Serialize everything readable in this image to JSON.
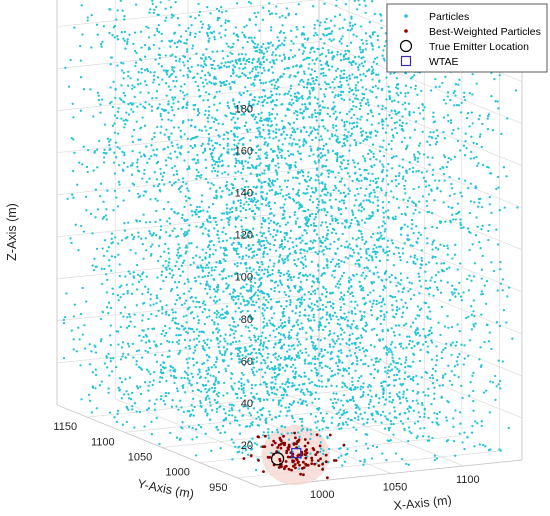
{
  "chart_data": {
    "type": "scatter",
    "projection": "3d",
    "title": "",
    "xlabel": "X-Axis (m)",
    "ylabel": "Y-Axis (m)",
    "zlabel": "Z-Axis (m)",
    "xlim": [
      960,
      1140
    ],
    "ylim": [
      920,
      1190
    ],
    "zlim": [
      0,
      195
    ],
    "x_ticks": [
      "1000",
      "1050",
      "1100"
    ],
    "y_ticks": [
      "950",
      "1000",
      "1050",
      "1100",
      "1150"
    ],
    "z_ticks": [
      "20",
      "40",
      "60",
      "80",
      "100",
      "120",
      "140",
      "160",
      "180"
    ],
    "grid": true,
    "legend_position": "top-right",
    "series": [
      {
        "name": "Particles",
        "marker": "dot",
        "color": "#22c4d8",
        "distribution": "uniform within axis limits",
        "count_estimate": 6000
      },
      {
        "name": "Best-Weighted Particles",
        "marker": "dot",
        "color": "#8b0000",
        "distribution": "cluster near emitter",
        "center": [
          1000,
          950,
          8
        ],
        "count_estimate": 120
      },
      {
        "name": "True Emitter Location",
        "marker": "circle",
        "color": "#000000",
        "points": [
          {
            "x": 985,
            "y": 945,
            "z": 8
          }
        ]
      },
      {
        "name": "WTAE",
        "marker": "square",
        "color": "#3b2db5",
        "points": [
          {
            "x": 1003,
            "y": 955,
            "z": 8
          }
        ]
      }
    ],
    "highlight_region": {
      "color": "#f6d6d0",
      "center": [
        1000,
        950,
        8
      ]
    }
  }
}
